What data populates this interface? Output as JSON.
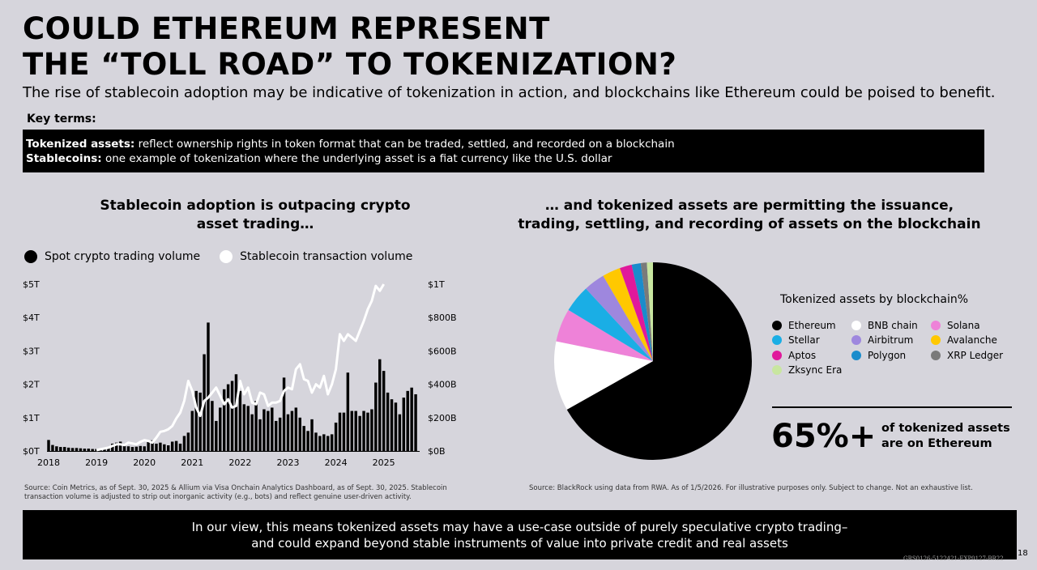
{
  "title_line1": "COULD ETHEREUM REPRESENT",
  "title_line2": "THE “TOLL ROAD” TO TOKENIZATION?",
  "subtitle": "The rise of stablecoin adoption may be indicative of tokenization in action, and blockchains like Ethereum could be poised to benefit.",
  "key_terms": {
    "label": "Key terms:",
    "term1_label": "Tokenized assets:",
    "term1_text": " reflect ownership rights in token format that can be traded, settled, and recorded on a blockchain",
    "term2_label": "Stablecoins:",
    "term2_text": " one example of tokenization where the underlying asset is a fiat currency like the U.S. dollar"
  },
  "left_title_line1": "Stablecoin adoption is outpacing crypto",
  "left_title_line2": "asset trading…",
  "right_title_line1": "… and  tokenized assets are permitting the issuance,",
  "right_title_line2": "trading, settling, and recording of assets on the blockchain",
  "legend": {
    "spot": "Spot crypto trading volume",
    "stable": "Stablecoin transaction volume"
  },
  "source_left": "Source: Coin Metrics, as of Sept. 30, 2025 & Allium via Visa Onchain Analytics Dashboard, as of Sept. 30, 2025. Stablecoin transaction volume is adjusted to strip out inorganic activity (e.g., bots) and reflect genuine user-driven activity.",
  "source_right": "Source: BlackRock using data from RWA. As of 1/5/2026. For illustrative purposes only. Subject to change. Not an exhaustive list.",
  "pie_legend_title": "Tokenized assets by blockchain%",
  "big_stat": "65%+",
  "stat_label_line1": "of tokenized assets",
  "stat_label_line2": "are on Ethereum",
  "bottom_line1": "In our view, this means tokenized assets may have a use-case outside of purely speculative crypto trading–",
  "bottom_line2": "and could expand beyond stable instruments of value into private credit and real assets",
  "page_number": "18",
  "doc_code": "GRS0126-5122421-EXP0127-BR22",
  "colors": {
    "background": "#d6d5dc",
    "spot": "#000000",
    "stable": "#ffffff"
  },
  "chart_data": [
    {
      "type": "bar",
      "title": "Stablecoin adoption is outpacing crypto asset trading…",
      "x_ticks": [
        "2018",
        "2019",
        "2020",
        "2021",
        "2022",
        "2023",
        "2024",
        "2025"
      ],
      "y_left_ticks": [
        "$0T",
        "$1T",
        "$2T",
        "$3T",
        "$4T",
        "$5T"
      ],
      "y_right_ticks": [
        "$0B",
        "$200B",
        "$400B",
        "$600B",
        "$800B",
        "$1T"
      ],
      "ylim_left": [
        0,
        5
      ],
      "ylim_right": [
        0,
        1000
      ],
      "grid": false,
      "legend_position": "top-left",
      "series": [
        {
          "name": "Spot crypto trading volume",
          "unit": "$T",
          "axis": "left",
          "x_start": "2018-01",
          "values": [
            0.33,
            0.18,
            0.14,
            0.12,
            0.12,
            0.1,
            0.09,
            0.09,
            0.08,
            0.07,
            0.07,
            0.06,
            0.06,
            0.07,
            0.08,
            0.12,
            0.22,
            0.25,
            0.28,
            0.2,
            0.14,
            0.12,
            0.13,
            0.15,
            0.14,
            0.28,
            0.32,
            0.22,
            0.25,
            0.2,
            0.17,
            0.28,
            0.3,
            0.22,
            0.45,
            0.55,
            1.2,
            1.8,
            1.75,
            2.9,
            3.85,
            1.5,
            0.9,
            1.3,
            1.85,
            2.0,
            2.1,
            2.3,
            1.8,
            1.4,
            1.35,
            1.1,
            1.5,
            0.95,
            1.25,
            1.2,
            1.3,
            0.9,
            1.0,
            2.2,
            1.1,
            1.2,
            1.3,
            1.0,
            0.75,
            0.6,
            0.95,
            0.55,
            0.45,
            0.5,
            0.45,
            0.5,
            0.85,
            1.15,
            1.15,
            2.35,
            1.2,
            1.2,
            1.05,
            1.2,
            1.15,
            1.25,
            2.05,
            2.75,
            2.4,
            1.75,
            1.55,
            1.45,
            1.1,
            1.6,
            1.8,
            1.9,
            1.7
          ]
        },
        {
          "name": "Stablecoin transaction volume",
          "unit": "$B",
          "axis": "right",
          "x_start": "2019-01",
          "values": [
            5,
            10,
            15,
            20,
            30,
            40,
            40,
            35,
            50,
            45,
            40,
            55,
            65,
            60,
            50,
            80,
            115,
            120,
            130,
            150,
            195,
            230,
            300,
            420,
            360,
            260,
            210,
            300,
            320,
            350,
            380,
            330,
            280,
            310,
            260,
            270,
            420,
            340,
            380,
            290,
            280,
            350,
            340,
            270,
            290,
            290,
            300,
            360,
            380,
            370,
            490,
            520,
            430,
            420,
            350,
            400,
            380,
            450,
            340,
            400,
            490,
            700,
            660,
            700,
            680,
            660,
            720,
            780,
            850,
            900,
            990,
            960,
            1000
          ]
        }
      ]
    },
    {
      "type": "pie",
      "title": "Tokenized assets by blockchain%",
      "labels": [
        "Ethereum",
        "BNB chain",
        "Solana",
        "Stellar",
        "Airbitrum",
        "Avalanche",
        "Aptos",
        "Polygon",
        "XRP Ledger",
        "Zksync Era"
      ],
      "values": [
        67.5,
        11.5,
        5.5,
        4.5,
        3.5,
        3.0,
        2.0,
        1.5,
        1.0,
        1.0
      ],
      "colors": [
        "#000000",
        "#ffffff",
        "#ee82d8",
        "#1aaee5",
        "#9e87de",
        "#ffc800",
        "#e0199b",
        "#1a8ccc",
        "#7a7a7a",
        "#c8e6a0"
      ]
    }
  ]
}
